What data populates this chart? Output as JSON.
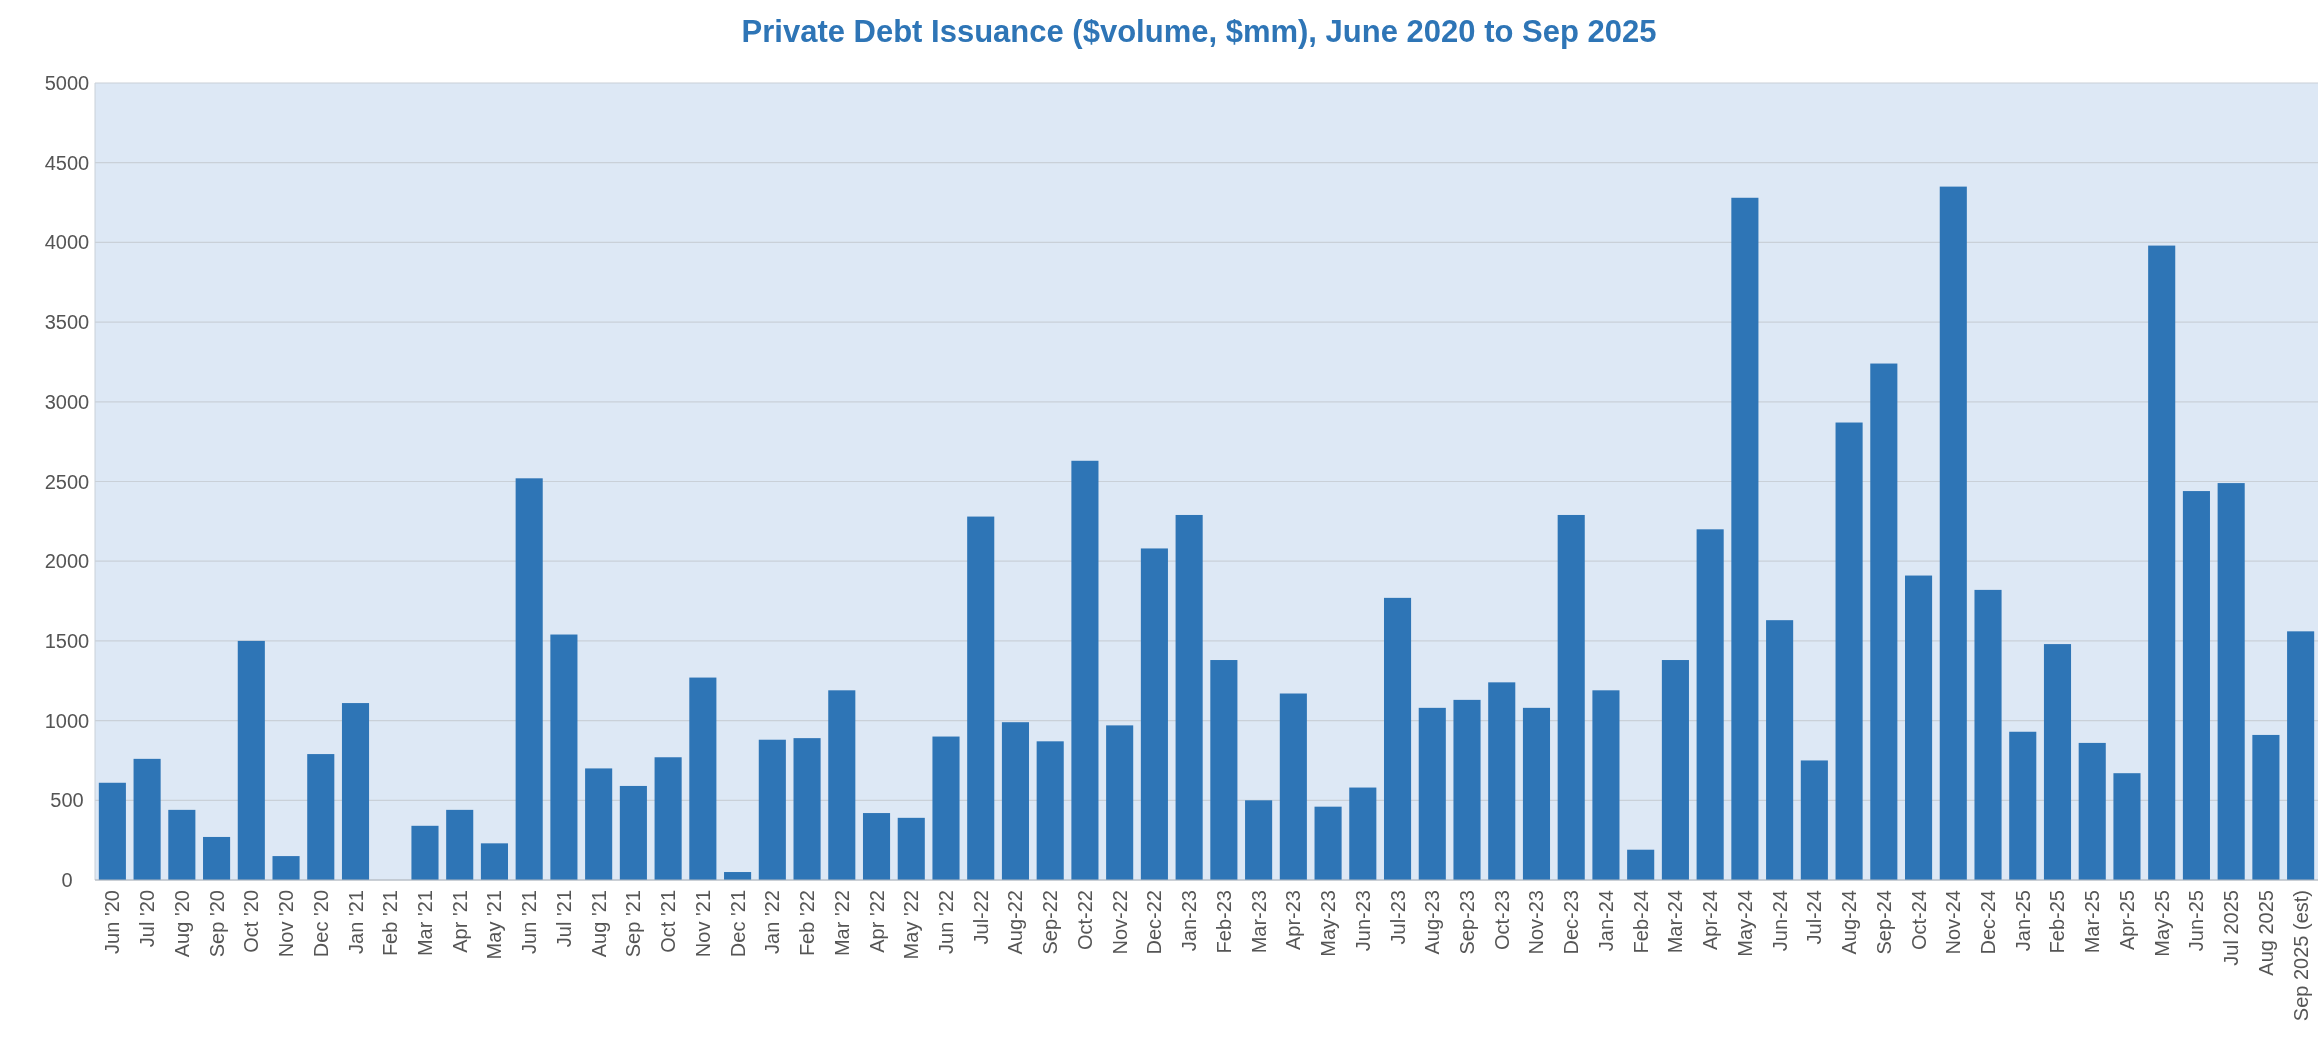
{
  "chart_data": {
    "type": "bar",
    "title": "Private Debt Issuance ($volume, $mm), June 2020 to Sep 2025",
    "categories": [
      "Jun '20",
      "Jul '20",
      "Aug '20",
      "Sep '20",
      "Oct '20",
      "Nov '20",
      "Dec '20",
      "Jan '21",
      "Feb '21",
      "Mar '21",
      "Apr '21",
      "May '21",
      "Jun '21",
      "Jul '21",
      "Aug '21",
      "Sep '21",
      "Oct '21",
      "Nov '21",
      "Dec '21",
      "Jan '22",
      "Feb '22",
      "Mar '22",
      "Apr '22",
      "May '22",
      "Jun '22",
      "Jul-22",
      "Aug-22",
      "Sep-22",
      "Oct-22",
      "Nov-22",
      "Dec-22",
      "Jan-23",
      "Feb-23",
      "Mar-23",
      "Apr-23",
      "May-23",
      "Jun-23",
      "Jul-23",
      "Aug-23",
      "Sep-23",
      "Oct-23",
      "Nov-23",
      "Dec-23",
      "Jan-24",
      "Feb-24",
      "Mar-24",
      "Apr-24",
      "May-24",
      "Jun-24",
      "Jul-24",
      "Aug-24",
      "Sep-24",
      "Oct-24",
      "Nov-24",
      "Dec-24",
      "Jan-25",
      "Feb-25",
      "Mar-25",
      "Apr-25",
      "May-25",
      "Jun-25",
      "Jul 2025",
      "Aug 2025",
      "Sep 2025 (est)"
    ],
    "values": [
      610,
      760,
      440,
      270,
      1500,
      150,
      790,
      1110,
      0,
      340,
      440,
      230,
      2520,
      1540,
      700,
      590,
      770,
      1270,
      50,
      880,
      890,
      1190,
      420,
      390,
      900,
      2280,
      990,
      870,
      2630,
      970,
      2080,
      2290,
      1380,
      500,
      1170,
      460,
      580,
      1770,
      1080,
      1130,
      1240,
      1080,
      2290,
      1190,
      190,
      1380,
      2200,
      4280,
      1630,
      750,
      2870,
      3240,
      1910,
      4350,
      1820,
      930,
      1480,
      860,
      670,
      3980,
      2440,
      2490,
      910,
      1560
    ],
    "color": "#2e75b6",
    "ylim": [
      0,
      5000
    ],
    "yticks": [
      0,
      500,
      1000,
      1500,
      2000,
      2500,
      3000,
      3500,
      4000,
      4500,
      5000
    ],
    "grid": "y"
  }
}
